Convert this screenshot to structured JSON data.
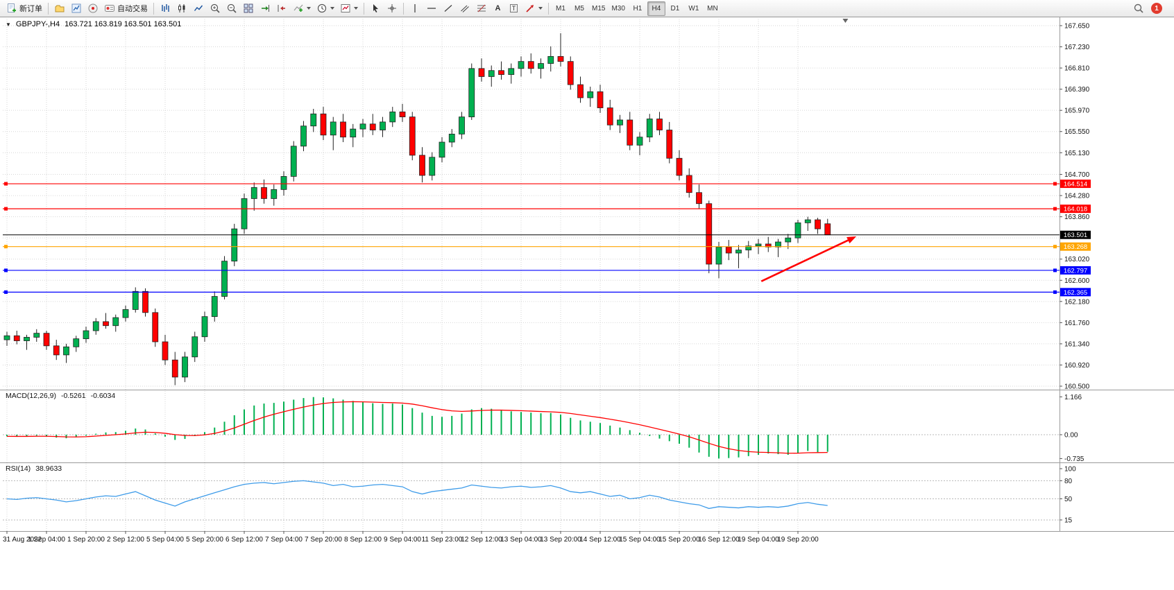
{
  "toolbar": {
    "new_order_label": "新订单",
    "autotrading_label": "自动交易",
    "text_tool": "A",
    "label_tool": "T",
    "timeframes": [
      "M1",
      "M5",
      "M15",
      "M30",
      "H1",
      "H4",
      "D1",
      "W1",
      "MN"
    ],
    "active_timeframe": "H4",
    "notification_count": "1",
    "icons_left_to_right": [
      "new-order",
      "profiles",
      "market-watch",
      "navigator",
      "autotrading",
      "bar-chart",
      "candlestick-chart",
      "line-chart",
      "zoom-in",
      "zoom-out",
      "tile-windows",
      "auto-scroll",
      "chart-shift",
      "indicators",
      "periods",
      "templates",
      "cursor",
      "crosshair",
      "vertical-line",
      "horizontal-line",
      "trendline",
      "equidistant-channel",
      "fibonacci",
      "text",
      "text-label",
      "arrows",
      "search",
      "notifications"
    ]
  },
  "chart": {
    "symbol_period": "GBPJPY-,H4",
    "ohlc": "163.721 163.819 163.501 163.501"
  },
  "indicators": {
    "macd": {
      "label": "MACD(12,26,9)",
      "main_value": "-0.5261",
      "signal_value": "-0.6034"
    },
    "rsi": {
      "label": "RSI(14)",
      "value": "38.9633"
    }
  },
  "chart_data": {
    "type": "candlestick",
    "symbol": "GBPJPY-",
    "timeframe": "H4",
    "current_ohlc": {
      "open": 163.721,
      "high": 163.819,
      "low": 163.501,
      "close": 163.501
    },
    "price_range": [
      160.5,
      167.65
    ],
    "price_ticks": [
      "167.650",
      "167.230",
      "166.810",
      "166.390",
      "165.970",
      "165.550",
      "165.130",
      "164.700",
      "164.280",
      "163.860",
      "163.020",
      "162.600",
      "162.180",
      "161.760",
      "161.340",
      "160.920",
      "160.500"
    ],
    "price_grid": [
      167.65,
      167.23,
      166.81,
      166.39,
      165.97,
      165.55,
      165.13,
      164.7,
      164.28,
      163.86,
      163.44,
      163.02,
      162.6,
      162.18,
      161.76,
      161.34,
      160.92,
      160.5
    ],
    "x_labels": [
      "31 Aug 2022",
      "1 Sep 04:00",
      "1 Sep 20:00",
      "2 Sep 12:00",
      "5 Sep 04:00",
      "5 Sep 20:00",
      "6 Sep 12:00",
      "7 Sep 04:00",
      "7 Sep 20:00",
      "8 Sep 12:00",
      "9 Sep 04:00",
      "11 Sep 23:00",
      "12 Sep 12:00",
      "13 Sep 04:00",
      "13 Sep 20:00",
      "14 Sep 12:00",
      "15 Sep 04:00",
      "15 Sep 20:00",
      "16 Sep 12:00",
      "19 Sep 04:00",
      "19 Sep 20:00"
    ],
    "x_label_every": 4,
    "shift_marker_bar": 84.8,
    "colors": {
      "up": "#00B050",
      "down": "#FF0000",
      "outline": "#222222",
      "grid": "#d6d6d6"
    },
    "candles": [
      [
        161.42,
        161.58,
        161.3,
        161.5
      ],
      [
        161.5,
        161.6,
        161.33,
        161.4
      ],
      [
        161.4,
        161.52,
        161.22,
        161.47
      ],
      [
        161.47,
        161.63,
        161.38,
        161.55
      ],
      [
        161.55,
        161.6,
        161.22,
        161.3
      ],
      [
        161.3,
        161.42,
        161.02,
        161.12
      ],
      [
        161.12,
        161.34,
        160.96,
        161.28
      ],
      [
        161.28,
        161.5,
        161.18,
        161.44
      ],
      [
        161.44,
        161.68,
        161.36,
        161.6
      ],
      [
        161.6,
        161.85,
        161.52,
        161.78
      ],
      [
        161.78,
        161.95,
        161.64,
        161.7
      ],
      [
        161.7,
        161.92,
        161.58,
        161.86
      ],
      [
        161.86,
        162.1,
        161.78,
        162.02
      ],
      [
        162.02,
        162.46,
        161.96,
        162.38
      ],
      [
        162.38,
        162.44,
        161.88,
        161.96
      ],
      [
        161.96,
        162.04,
        161.28,
        161.38
      ],
      [
        161.38,
        161.52,
        160.92,
        161.02
      ],
      [
        161.02,
        161.18,
        160.52,
        160.68
      ],
      [
        160.68,
        161.18,
        160.58,
        161.08
      ],
      [
        161.08,
        161.58,
        160.98,
        161.48
      ],
      [
        161.48,
        161.98,
        161.38,
        161.88
      ],
      [
        161.88,
        162.38,
        161.78,
        162.28
      ],
      [
        162.28,
        163.08,
        162.22,
        162.98
      ],
      [
        162.98,
        163.72,
        162.88,
        163.62
      ],
      [
        163.62,
        164.32,
        163.52,
        164.22
      ],
      [
        164.22,
        164.54,
        163.98,
        164.44
      ],
      [
        164.44,
        164.6,
        164.12,
        164.22
      ],
      [
        164.22,
        164.5,
        164.08,
        164.4
      ],
      [
        164.4,
        164.76,
        164.28,
        164.66
      ],
      [
        164.66,
        165.36,
        164.56,
        165.26
      ],
      [
        165.26,
        165.76,
        165.16,
        165.66
      ],
      [
        165.66,
        166.0,
        165.54,
        165.9
      ],
      [
        165.9,
        166.04,
        165.38,
        165.48
      ],
      [
        165.48,
        165.84,
        165.18,
        165.74
      ],
      [
        165.74,
        165.9,
        165.34,
        165.44
      ],
      [
        165.44,
        165.7,
        165.24,
        165.6
      ],
      [
        165.6,
        165.8,
        165.44,
        165.7
      ],
      [
        165.7,
        165.9,
        165.48,
        165.58
      ],
      [
        165.58,
        165.84,
        165.44,
        165.74
      ],
      [
        165.74,
        166.04,
        165.64,
        165.94
      ],
      [
        165.94,
        166.1,
        165.74,
        165.84
      ],
      [
        165.84,
        165.94,
        164.98,
        165.08
      ],
      [
        165.08,
        165.24,
        164.54,
        164.68
      ],
      [
        164.68,
        165.14,
        164.58,
        165.04
      ],
      [
        165.04,
        165.44,
        164.94,
        165.34
      ],
      [
        165.34,
        165.6,
        165.24,
        165.5
      ],
      [
        165.5,
        165.94,
        165.4,
        165.84
      ],
      [
        165.84,
        166.9,
        165.78,
        166.8
      ],
      [
        166.8,
        167.0,
        166.54,
        166.64
      ],
      [
        166.64,
        166.86,
        166.44,
        166.76
      ],
      [
        166.76,
        166.94,
        166.58,
        166.68
      ],
      [
        166.68,
        166.9,
        166.5,
        166.8
      ],
      [
        166.8,
        167.04,
        166.64,
        166.94
      ],
      [
        166.94,
        167.1,
        166.7,
        166.8
      ],
      [
        166.8,
        167.0,
        166.6,
        166.9
      ],
      [
        166.9,
        167.24,
        166.74,
        167.04
      ],
      [
        167.04,
        167.5,
        166.84,
        166.94
      ],
      [
        166.94,
        167.04,
        166.38,
        166.48
      ],
      [
        166.48,
        166.64,
        166.12,
        166.22
      ],
      [
        166.22,
        166.44,
        166.04,
        166.34
      ],
      [
        166.34,
        166.48,
        165.92,
        166.02
      ],
      [
        166.02,
        166.18,
        165.58,
        165.68
      ],
      [
        165.68,
        165.88,
        165.52,
        165.78
      ],
      [
        165.78,
        165.94,
        165.18,
        165.28
      ],
      [
        165.28,
        165.54,
        165.08,
        165.44
      ],
      [
        165.44,
        165.9,
        165.34,
        165.8
      ],
      [
        165.8,
        165.94,
        165.48,
        165.58
      ],
      [
        165.58,
        165.74,
        164.92,
        165.02
      ],
      [
        165.02,
        165.18,
        164.58,
        164.68
      ],
      [
        164.68,
        164.82,
        164.24,
        164.34
      ],
      [
        164.34,
        164.5,
        164.02,
        164.12
      ],
      [
        164.12,
        164.18,
        162.74,
        162.92
      ],
      [
        162.92,
        163.36,
        162.64,
        163.26
      ],
      [
        163.26,
        163.4,
        163.0,
        163.14
      ],
      [
        163.14,
        163.3,
        162.84,
        163.2
      ],
      [
        163.2,
        163.38,
        163.04,
        163.28
      ],
      [
        163.28,
        163.42,
        163.12,
        163.32
      ],
      [
        163.32,
        163.46,
        163.16,
        163.26
      ],
      [
        163.26,
        163.42,
        163.06,
        163.36
      ],
      [
        163.36,
        163.52,
        163.22,
        163.44
      ],
      [
        163.44,
        163.8,
        163.34,
        163.74
      ],
      [
        163.74,
        163.86,
        163.58,
        163.8
      ],
      [
        163.8,
        163.84,
        163.52,
        163.62
      ],
      [
        163.721,
        163.819,
        163.501,
        163.501
      ]
    ],
    "objects": {
      "hlines": [
        {
          "price": 164.514,
          "label": "164.514",
          "color": "#FF0000"
        },
        {
          "price": 164.018,
          "label": "164.018",
          "color": "#FF0000"
        },
        {
          "price": 163.268,
          "label": "163.268",
          "color": "#FFA500"
        },
        {
          "price": 162.797,
          "label": "162.797",
          "color": "#0000FF"
        },
        {
          "price": 162.365,
          "label": "162.365",
          "color": "#0000FF"
        }
      ],
      "bid_line": {
        "price": 163.501,
        "label": "163.501",
        "color": "#000000"
      },
      "trend_arrow": {
        "from_bar": 76.3,
        "from_price": 162.58,
        "to_bar": 85.9,
        "to_price": 163.47,
        "color": "#FF0000"
      }
    },
    "macd": {
      "params": "12,26,9",
      "current_main": -0.5261,
      "current_signal": -0.6034,
      "ticks": [
        "1.166",
        "0.00",
        "-0.735"
      ],
      "histogram_color": "#00B050",
      "signal_color": "#FF0000",
      "signal_period": 9,
      "values": [
        -0.05,
        -0.06,
        -0.05,
        -0.03,
        -0.05,
        -0.09,
        -0.11,
        -0.08,
        -0.03,
        0.03,
        0.07,
        0.08,
        0.12,
        0.19,
        0.16,
        0.04,
        -0.06,
        -0.16,
        -0.13,
        -0.04,
        0.08,
        0.22,
        0.4,
        0.6,
        0.78,
        0.9,
        0.96,
        0.98,
        1.02,
        1.08,
        1.13,
        1.16,
        1.15,
        1.12,
        1.08,
        1.04,
        1.0,
        0.97,
        0.95,
        0.96,
        0.93,
        0.82,
        0.68,
        0.58,
        0.55,
        0.58,
        0.65,
        0.78,
        0.82,
        0.8,
        0.75,
        0.72,
        0.7,
        0.68,
        0.66,
        0.67,
        0.62,
        0.52,
        0.44,
        0.4,
        0.36,
        0.28,
        0.22,
        0.14,
        0.06,
        -0.04,
        -0.12,
        -0.2,
        -0.28,
        -0.4,
        -0.55,
        -0.68,
        -0.735,
        -0.72,
        -0.7,
        -0.66,
        -0.62,
        -0.58,
        -0.6,
        -0.62,
        -0.56,
        -0.5,
        -0.54,
        -0.5261
      ]
    },
    "rsi": {
      "period": 14,
      "current": 38.9633,
      "levels": [
        80,
        50,
        15
      ],
      "ticks": [
        "100",
        "80",
        "50",
        "15"
      ],
      "color": "#3D9BE9",
      "values": [
        50,
        49,
        51,
        52,
        50,
        48,
        45,
        47,
        50,
        53,
        55,
        54,
        58,
        62,
        55,
        48,
        43,
        38,
        45,
        50,
        55,
        60,
        65,
        70,
        74,
        76,
        77,
        75,
        77,
        79,
        80,
        78,
        76,
        72,
        74,
        70,
        71,
        73,
        74,
        72,
        70,
        62,
        58,
        62,
        64,
        66,
        68,
        73,
        71,
        69,
        68,
        70,
        71,
        69,
        70,
        72,
        68,
        62,
        60,
        62,
        58,
        54,
        56,
        50,
        52,
        56,
        53,
        48,
        45,
        42,
        40,
        34,
        37,
        36,
        35,
        37,
        36,
        37,
        36,
        38,
        42,
        44,
        41,
        38.9633
      ]
    }
  }
}
